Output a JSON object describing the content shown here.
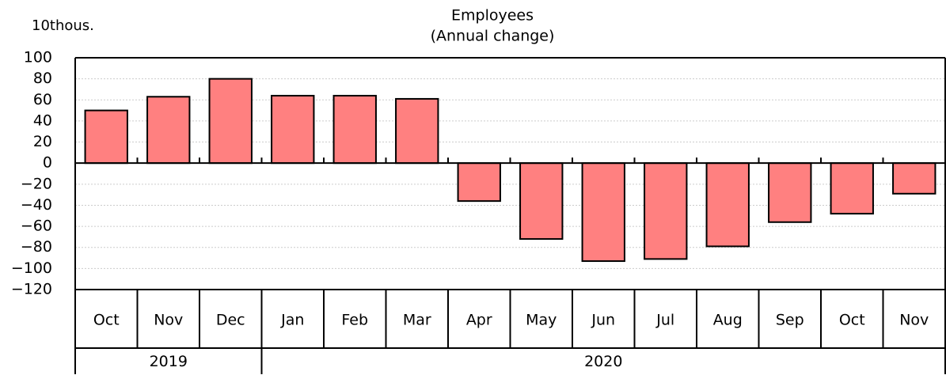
{
  "chart_data": {
    "type": "bar",
    "title": "Employees",
    "subtitle": "(Annual change)",
    "y_unit": "10thous.",
    "categories": [
      "Oct",
      "Nov",
      "Dec",
      "Jan",
      "Feb",
      "Mar",
      "Apr",
      "May",
      "Jun",
      "Jul",
      "Aug",
      "Sep",
      "Oct",
      "Nov"
    ],
    "years": [
      "2019",
      "2019",
      "2019",
      "2020",
      "2020",
      "2020",
      "2020",
      "2020",
      "2020",
      "2020",
      "2020",
      "2020",
      "2020",
      "2020"
    ],
    "values": [
      50,
      63,
      80,
      64,
      64,
      61,
      -36,
      -72,
      -93,
      -91,
      -79,
      -56,
      -48,
      -29
    ],
    "color": "#ff8080",
    "ylim": [
      -120,
      100
    ],
    "yticks": [
      {
        "value": -120,
        "label": "−120"
      },
      {
        "value": -100,
        "label": "−100"
      },
      {
        "value": -80,
        "label": "−80"
      },
      {
        "value": -60,
        "label": "−60"
      },
      {
        "value": -40,
        "label": "−40"
      },
      {
        "value": -20,
        "label": "−20"
      },
      0,
      20,
      40,
      60,
      80,
      100
    ],
    "grid": true
  }
}
